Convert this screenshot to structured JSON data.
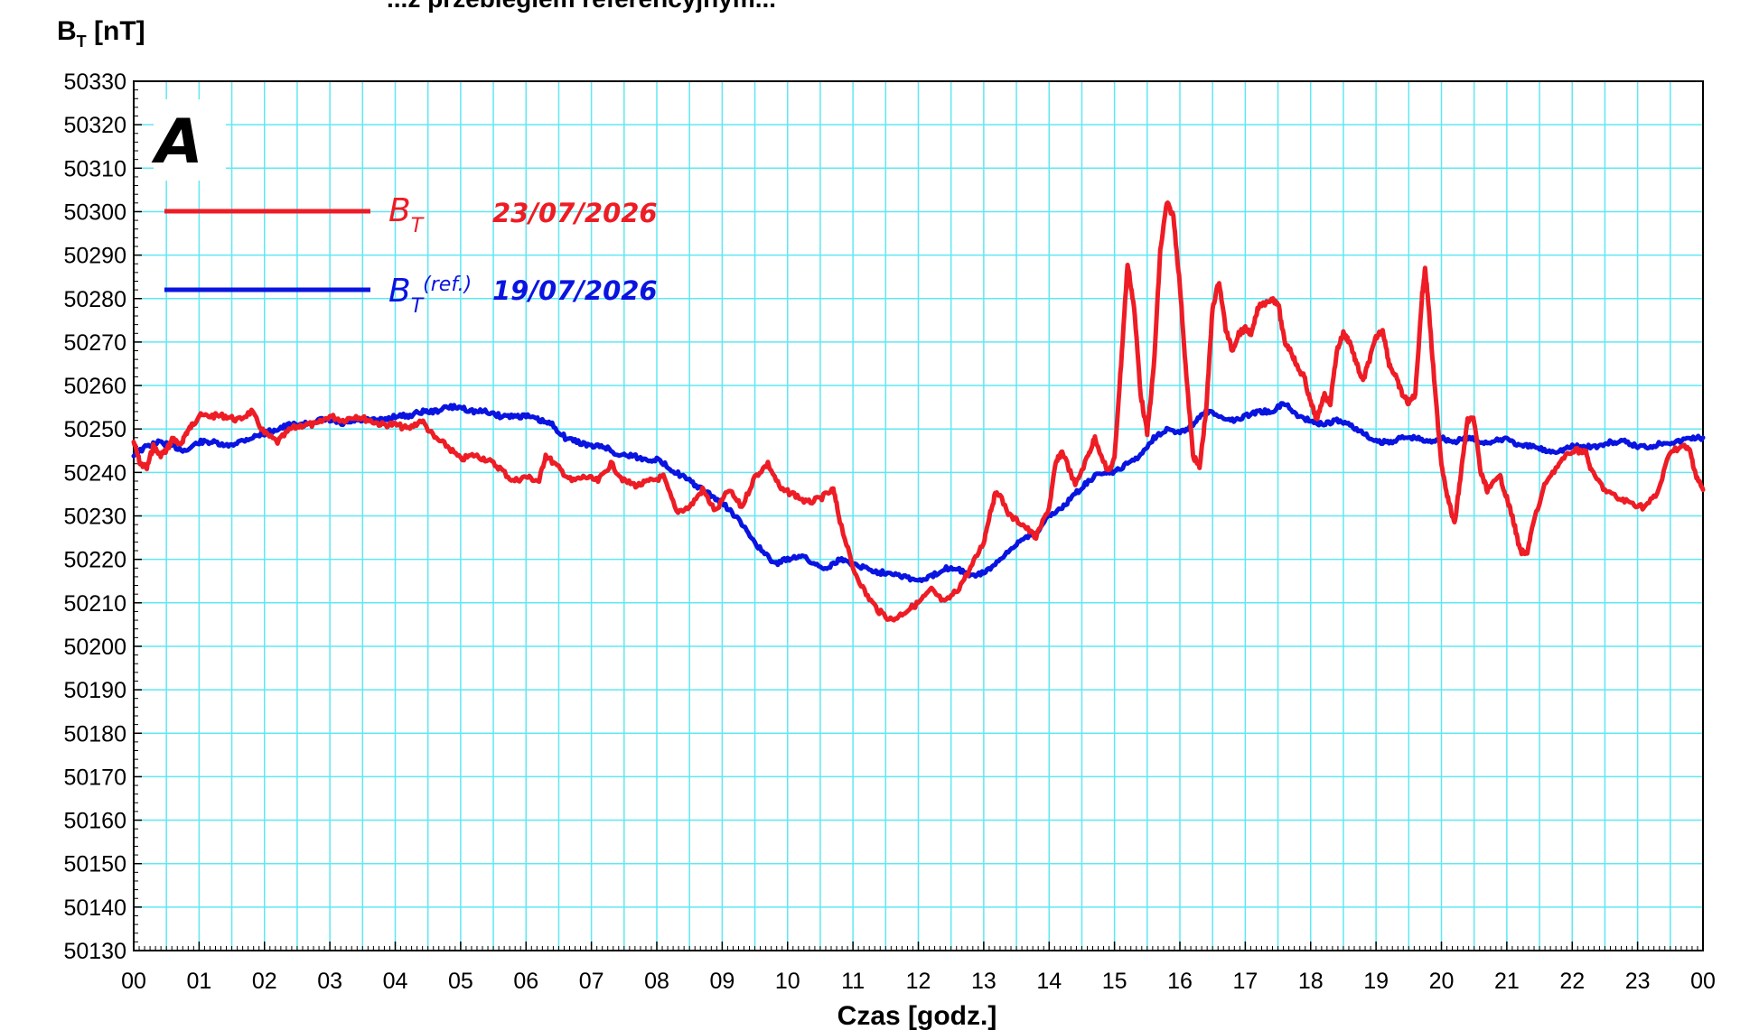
{
  "page_title_partial": "...z przebiegiem referencyjnym...",
  "chart_data": {
    "type": "line",
    "title": "",
    "ylabel": "B",
    "ylabel_sub": "T",
    "ylabel_unit": "[nT]",
    "xlabel": "Czas [godz.]",
    "panel_label": "A",
    "xlim": [
      0,
      24
    ],
    "ylim": [
      50130,
      50330
    ],
    "y_tick_step": 10,
    "x_ticks": [
      "00",
      "01",
      "02",
      "03",
      "04",
      "05",
      "06",
      "07",
      "08",
      "09",
      "10",
      "11",
      "12",
      "13",
      "14",
      "15",
      "16",
      "17",
      "18",
      "19",
      "20",
      "21",
      "22",
      "23",
      "00"
    ],
    "grid": true,
    "grid_color": "#5fe8f2",
    "legend_position": "top-left",
    "series": [
      {
        "name": "B_T",
        "legend_symbol": "B",
        "legend_sub": "T",
        "legend_sup": "",
        "date": "23/07/2026",
        "color": "#ee1c25",
        "points": [
          [
            0,
            50247
          ],
          [
            0.1,
            50242
          ],
          [
            0.2,
            50241
          ],
          [
            0.3,
            50246
          ],
          [
            0.4,
            50244
          ],
          [
            0.5,
            50245
          ],
          [
            0.6,
            50248
          ],
          [
            0.7,
            50246
          ],
          [
            0.8,
            50249
          ],
          [
            0.9,
            50251
          ],
          [
            1.0,
            50253
          ],
          [
            1.2,
            50253
          ],
          [
            1.4,
            50253
          ],
          [
            1.6,
            50252
          ],
          [
            1.8,
            50254
          ],
          [
            2.0,
            50249
          ],
          [
            2.2,
            50247
          ],
          [
            2.4,
            50250
          ],
          [
            2.6,
            50251
          ],
          [
            2.8,
            50251
          ],
          [
            3.0,
            50253
          ],
          [
            3.2,
            50252
          ],
          [
            3.4,
            50253
          ],
          [
            3.6,
            50252
          ],
          [
            3.8,
            50251
          ],
          [
            4.0,
            50251
          ],
          [
            4.2,
            50250
          ],
          [
            4.4,
            50252
          ],
          [
            4.6,
            50248
          ],
          [
            4.8,
            50246
          ],
          [
            5.0,
            50243
          ],
          [
            5.2,
            50244
          ],
          [
            5.4,
            50243
          ],
          [
            5.6,
            50241
          ],
          [
            5.8,
            50238
          ],
          [
            6.0,
            50239
          ],
          [
            6.2,
            50238
          ],
          [
            6.3,
            50244
          ],
          [
            6.5,
            50241
          ],
          [
            6.7,
            50238
          ],
          [
            6.9,
            50239
          ],
          [
            7.1,
            50238
          ],
          [
            7.3,
            50242
          ],
          [
            7.5,
            50238
          ],
          [
            7.7,
            50237
          ],
          [
            7.9,
            50238
          ],
          [
            8.1,
            50239
          ],
          [
            8.3,
            50231
          ],
          [
            8.5,
            50232
          ],
          [
            8.7,
            50236
          ],
          [
            8.9,
            50231
          ],
          [
            9.1,
            50236
          ],
          [
            9.3,
            50232
          ],
          [
            9.5,
            50239
          ],
          [
            9.7,
            50242
          ],
          [
            9.9,
            50236
          ],
          [
            10.1,
            50235
          ],
          [
            10.3,
            50233
          ],
          [
            10.5,
            50234
          ],
          [
            10.7,
            50236
          ],
          [
            10.8,
            50229
          ],
          [
            11.0,
            50218
          ],
          [
            11.2,
            50212
          ],
          [
            11.4,
            50208
          ],
          [
            11.6,
            50206
          ],
          [
            11.8,
            50208
          ],
          [
            12.0,
            50210
          ],
          [
            12.2,
            50213
          ],
          [
            12.4,
            50210
          ],
          [
            12.6,
            50213
          ],
          [
            12.8,
            50218
          ],
          [
            13.0,
            50224
          ],
          [
            13.1,
            50231
          ],
          [
            13.2,
            50236
          ],
          [
            13.4,
            50230
          ],
          [
            13.6,
            50228
          ],
          [
            13.8,
            50225
          ],
          [
            14.0,
            50232
          ],
          [
            14.1,
            50242
          ],
          [
            14.2,
            50245
          ],
          [
            14.4,
            50237
          ],
          [
            14.6,
            50244
          ],
          [
            14.7,
            50248
          ],
          [
            14.9,
            50240
          ],
          [
            15.0,
            50243
          ],
          [
            15.1,
            50265
          ],
          [
            15.2,
            50288
          ],
          [
            15.3,
            50278
          ],
          [
            15.4,
            50258
          ],
          [
            15.5,
            50249
          ],
          [
            15.6,
            50264
          ],
          [
            15.7,
            50291
          ],
          [
            15.8,
            50302
          ],
          [
            15.9,
            50299
          ],
          [
            16.0,
            50283
          ],
          [
            16.1,
            50262
          ],
          [
            16.2,
            50244
          ],
          [
            16.3,
            50241
          ],
          [
            16.4,
            50254
          ],
          [
            16.5,
            50278
          ],
          [
            16.6,
            50284
          ],
          [
            16.7,
            50273
          ],
          [
            16.8,
            50268
          ],
          [
            16.9,
            50272
          ],
          [
            17.0,
            50273
          ],
          [
            17.1,
            50272
          ],
          [
            17.2,
            50278
          ],
          [
            17.4,
            50280
          ],
          [
            17.5,
            50279
          ],
          [
            17.6,
            50270
          ],
          [
            17.7,
            50268
          ],
          [
            17.8,
            50264
          ],
          [
            17.9,
            50262
          ],
          [
            18.0,
            50256
          ],
          [
            18.1,
            50252
          ],
          [
            18.2,
            50258
          ],
          [
            18.3,
            50256
          ],
          [
            18.4,
            50268
          ],
          [
            18.5,
            50272
          ],
          [
            18.6,
            50270
          ],
          [
            18.7,
            50265
          ],
          [
            18.8,
            50261
          ],
          [
            18.9,
            50266
          ],
          [
            19.0,
            50271
          ],
          [
            19.1,
            50273
          ],
          [
            19.2,
            50265
          ],
          [
            19.3,
            50262
          ],
          [
            19.4,
            50258
          ],
          [
            19.5,
            50256
          ],
          [
            19.6,
            50258
          ],
          [
            19.7,
            50280
          ],
          [
            19.75,
            50287
          ],
          [
            19.8,
            50279
          ],
          [
            19.9,
            50259
          ],
          [
            20.0,
            50242
          ],
          [
            20.1,
            50234
          ],
          [
            20.2,
            50228
          ],
          [
            20.3,
            50240
          ],
          [
            20.4,
            50252
          ],
          [
            20.5,
            50252
          ],
          [
            20.6,
            50240
          ],
          [
            20.7,
            50236
          ],
          [
            20.9,
            50239
          ],
          [
            21.0,
            50234
          ],
          [
            21.1,
            50229
          ],
          [
            21.2,
            50222
          ],
          [
            21.3,
            50221
          ],
          [
            21.4,
            50228
          ],
          [
            21.6,
            50238
          ],
          [
            21.8,
            50242
          ],
          [
            22.0,
            50245
          ],
          [
            22.2,
            50245
          ],
          [
            22.3,
            50240
          ],
          [
            22.5,
            50236
          ],
          [
            22.7,
            50234
          ],
          [
            22.9,
            50233
          ],
          [
            23.1,
            50232
          ],
          [
            23.3,
            50235
          ],
          [
            23.5,
            50245
          ],
          [
            23.7,
            50246
          ],
          [
            23.8,
            50245
          ],
          [
            23.9,
            50239
          ],
          [
            24.0,
            50236
          ]
        ]
      },
      {
        "name": "B_T(ref.)",
        "legend_symbol": "B",
        "legend_sub": "T",
        "legend_sup": "(ref.)",
        "date": "19/07/2026",
        "color": "#0a14e0",
        "points": [
          [
            0,
            50244
          ],
          [
            0.2,
            50246
          ],
          [
            0.4,
            50247
          ],
          [
            0.6,
            50246
          ],
          [
            0.8,
            50245
          ],
          [
            1.0,
            50247
          ],
          [
            1.2,
            50247
          ],
          [
            1.4,
            50246
          ],
          [
            1.6,
            50247
          ],
          [
            1.8,
            50248
          ],
          [
            2.0,
            50249
          ],
          [
            2.2,
            50250
          ],
          [
            2.4,
            50251
          ],
          [
            2.6,
            50251
          ],
          [
            2.8,
            50252
          ],
          [
            3.0,
            50252
          ],
          [
            3.2,
            50251
          ],
          [
            3.4,
            50252
          ],
          [
            3.6,
            50252
          ],
          [
            3.8,
            50252
          ],
          [
            4.0,
            50253
          ],
          [
            4.2,
            50253
          ],
          [
            4.4,
            50254
          ],
          [
            4.6,
            50254
          ],
          [
            4.8,
            50255
          ],
          [
            5.0,
            50255
          ],
          [
            5.2,
            50254
          ],
          [
            5.4,
            50254
          ],
          [
            5.6,
            50253
          ],
          [
            5.8,
            50253
          ],
          [
            6.0,
            50253
          ],
          [
            6.2,
            50252
          ],
          [
            6.4,
            50251
          ],
          [
            6.6,
            50248
          ],
          [
            6.8,
            50247
          ],
          [
            7.0,
            50246
          ],
          [
            7.2,
            50246
          ],
          [
            7.4,
            50244
          ],
          [
            7.6,
            50244
          ],
          [
            7.8,
            50243
          ],
          [
            8.0,
            50243
          ],
          [
            8.2,
            50241
          ],
          [
            8.4,
            50239
          ],
          [
            8.6,
            50237
          ],
          [
            8.8,
            50235
          ],
          [
            9.0,
            50233
          ],
          [
            9.2,
            50230
          ],
          [
            9.4,
            50226
          ],
          [
            9.6,
            50222
          ],
          [
            9.8,
            50219
          ],
          [
            10.0,
            50220
          ],
          [
            10.2,
            50221
          ],
          [
            10.4,
            50219
          ],
          [
            10.6,
            50218
          ],
          [
            10.8,
            50220
          ],
          [
            11.0,
            50219
          ],
          [
            11.2,
            50218
          ],
          [
            11.4,
            50217
          ],
          [
            11.6,
            50217
          ],
          [
            11.8,
            50216
          ],
          [
            12.0,
            50215
          ],
          [
            12.2,
            50216
          ],
          [
            12.4,
            50218
          ],
          [
            12.6,
            50218
          ],
          [
            12.8,
            50216
          ],
          [
            13.0,
            50217
          ],
          [
            13.2,
            50219
          ],
          [
            13.4,
            50222
          ],
          [
            13.6,
            50225
          ],
          [
            13.8,
            50226
          ],
          [
            14.0,
            50230
          ],
          [
            14.2,
            50232
          ],
          [
            14.4,
            50235
          ],
          [
            14.6,
            50238
          ],
          [
            14.8,
            50240
          ],
          [
            15.0,
            50240
          ],
          [
            15.2,
            50242
          ],
          [
            15.4,
            50244
          ],
          [
            15.6,
            50248
          ],
          [
            15.8,
            50250
          ],
          [
            16.0,
            50249
          ],
          [
            16.2,
            50251
          ],
          [
            16.4,
            50254
          ],
          [
            16.6,
            50253
          ],
          [
            16.8,
            50252
          ],
          [
            17.0,
            50253
          ],
          [
            17.2,
            50254
          ],
          [
            17.4,
            50254
          ],
          [
            17.6,
            50256
          ],
          [
            17.8,
            50253
          ],
          [
            18.0,
            50252
          ],
          [
            18.2,
            50251
          ],
          [
            18.4,
            50252
          ],
          [
            18.6,
            50251
          ],
          [
            18.8,
            50249
          ],
          [
            19.0,
            50247
          ],
          [
            19.2,
            50247
          ],
          [
            19.4,
            50248
          ],
          [
            19.6,
            50248
          ],
          [
            19.8,
            50247
          ],
          [
            20.0,
            50248
          ],
          [
            20.2,
            50247
          ],
          [
            20.4,
            50248
          ],
          [
            20.6,
            50247
          ],
          [
            20.8,
            50247
          ],
          [
            21.0,
            50248
          ],
          [
            21.2,
            50246
          ],
          [
            21.4,
            50246
          ],
          [
            21.6,
            50245
          ],
          [
            21.8,
            50245
          ],
          [
            22.0,
            50246
          ],
          [
            22.2,
            50246
          ],
          [
            22.4,
            50246
          ],
          [
            22.6,
            50247
          ],
          [
            22.8,
            50247
          ],
          [
            23.0,
            50246
          ],
          [
            23.2,
            50246
          ],
          [
            23.4,
            50247
          ],
          [
            23.6,
            50247
          ],
          [
            23.8,
            50248
          ],
          [
            24.0,
            50248
          ]
        ]
      }
    ]
  }
}
